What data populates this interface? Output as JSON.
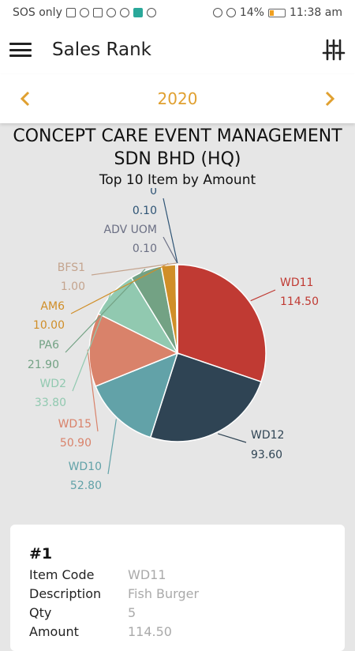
{
  "status": {
    "carrier": "SOS only",
    "battery": "14%",
    "time": "11:38 am"
  },
  "app": {
    "title": "Sales Rank"
  },
  "year": "2020",
  "chart_data": {
    "type": "pie",
    "title": "CONCEPT CARE EVENT MANAGEMENT SDN BHD (HQ)",
    "subtitle": "Top 10 Item by Amount",
    "slices": [
      {
        "label": "WD11",
        "value": 114.5,
        "value_label": "114.50",
        "color": "#c03a33"
      },
      {
        "label": "WD12",
        "value": 93.6,
        "value_label": "93.60",
        "color": "#2f4454"
      },
      {
        "label": "WD10",
        "value": 52.8,
        "value_label": "52.80",
        "color": "#62a2a8"
      },
      {
        "label": "WD15",
        "value": 50.9,
        "value_label": "50.90",
        "color": "#d9826a"
      },
      {
        "label": "WD2",
        "value": 33.8,
        "value_label": "33.80",
        "color": "#91c9b0"
      },
      {
        "label": "PA6",
        "value": 21.9,
        "value_label": "21.90",
        "color": "#73a284"
      },
      {
        "label": "AM6",
        "value": 10.0,
        "value_label": "10.00",
        "color": "#d08e28"
      },
      {
        "label": "BFS1",
        "value": 1.0,
        "value_label": "1.00",
        "color": "#c4a48e"
      },
      {
        "label": "ADV UOM",
        "value": 0.1,
        "value_label": "0.10",
        "color": "#6b6f84"
      },
      {
        "label": "0",
        "value": 0.1,
        "value_label": "0.10",
        "color": "#2e5475"
      }
    ]
  },
  "card": {
    "rank": "#1",
    "labels": {
      "code": "Item Code",
      "desc": "Description",
      "qty": "Qty",
      "amount": "Amount"
    },
    "values": {
      "code": "WD11",
      "desc": "Fish Burger",
      "qty": "5",
      "amount": "114.50"
    }
  }
}
